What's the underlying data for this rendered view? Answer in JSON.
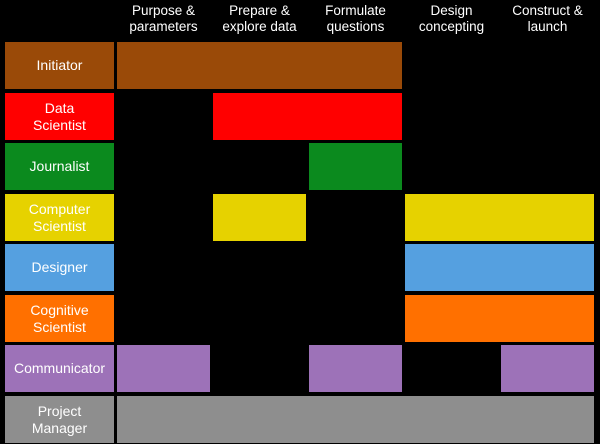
{
  "phases": [
    "Purpose &\nparameters",
    "Prepare &\nexplore data",
    "Formulate\nquestions",
    "Design\nconcepting",
    "Construct &\nlaunch"
  ],
  "roles": [
    {
      "label": "Initiator",
      "color": "#9a4a08",
      "spans": [
        [
          0,
          2
        ]
      ]
    },
    {
      "label": "Data\nScientist",
      "color": "#ff0000",
      "spans": [
        [
          1,
          2
        ]
      ]
    },
    {
      "label": "Journalist",
      "color": "#0b8a1e",
      "spans": [
        [
          2,
          2
        ]
      ]
    },
    {
      "label": "Computer\nScientist",
      "color": "#e6d200",
      "spans": [
        [
          1,
          1
        ],
        [
          3,
          4
        ]
      ]
    },
    {
      "label": "Designer",
      "color": "#55a0e0",
      "spans": [
        [
          3,
          4
        ]
      ]
    },
    {
      "label": "Cognitive\nScientist",
      "color": "#ff7000",
      "spans": [
        [
          3,
          4
        ]
      ]
    },
    {
      "label": "Communicator",
      "color": "#9d72b8",
      "spans": [
        [
          0,
          0
        ],
        [
          2,
          2
        ],
        [
          4,
          4
        ]
      ]
    },
    {
      "label": "Project\nManager",
      "color": "#8e8e8e",
      "spans": [
        [
          0,
          4
        ]
      ]
    }
  ]
}
